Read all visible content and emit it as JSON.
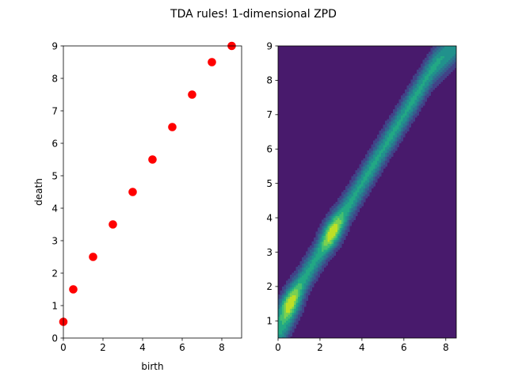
{
  "figure": {
    "title": "TDA rules! 1-dimensional ZPD",
    "background": "#ffffff"
  },
  "chart_data": [
    {
      "type": "scatter",
      "title": "",
      "xlabel": "birth",
      "ylabel": "death",
      "xlim": [
        0,
        9
      ],
      "ylim": [
        0,
        9
      ],
      "xticks": [
        0,
        2,
        4,
        6,
        8
      ],
      "yticks": [
        0,
        1,
        2,
        3,
        4,
        5,
        6,
        7,
        8,
        9
      ],
      "grid": false,
      "legend": "none",
      "series": [
        {
          "color": "#ff0000",
          "points": [
            {
              "x": 0,
              "y": 0.5
            },
            {
              "x": 0.5,
              "y": 1.5
            },
            {
              "x": 1.5,
              "y": 2.5
            },
            {
              "x": 2.5,
              "y": 3.5
            },
            {
              "x": 3.5,
              "y": 4.5
            },
            {
              "x": 4.5,
              "y": 5.5
            },
            {
              "x": 5.5,
              "y": 6.5
            },
            {
              "x": 6.5,
              "y": 7.5
            },
            {
              "x": 7.5,
              "y": 8.5
            },
            {
              "x": 8.5,
              "y": 9
            }
          ]
        }
      ]
    },
    {
      "type": "heatmap",
      "subtype": "filled-contour",
      "title": "",
      "xlabel": "",
      "ylabel": "",
      "xlim": [
        0,
        8.5
      ],
      "ylim": [
        0.5,
        9
      ],
      "xticks": [
        0,
        2,
        4,
        6,
        8
      ],
      "yticks": [
        1,
        2,
        3,
        4,
        5,
        6,
        7,
        8,
        9
      ],
      "grid": false,
      "colormap": "viridis",
      "levels": [
        "#481a6c",
        "#414287",
        "#355f8d",
        "#2a788e",
        "#21918c",
        "#22a884",
        "#44bf70",
        "#7ad151",
        "#bddf26"
      ],
      "kernels": [
        {
          "x": 0,
          "y": 0.5
        },
        {
          "x": 0.5,
          "y": 1.5
        },
        {
          "x": 1.5,
          "y": 2.5
        },
        {
          "x": 2.5,
          "y": 3.5
        },
        {
          "x": 3.5,
          "y": 4.5
        },
        {
          "x": 4.5,
          "y": 5.5
        },
        {
          "x": 5.5,
          "y": 6.5
        },
        {
          "x": 6.5,
          "y": 7.5
        },
        {
          "x": 7.5,
          "y": 8.5
        },
        {
          "x": 8.5,
          "y": 9
        }
      ],
      "kernel_sigma": [
        0.7,
        0.25
      ],
      "band_peaks": [
        {
          "x": 0.6,
          "y": 1.5
        },
        {
          "x": 2.6,
          "y": 3.6
        }
      ]
    }
  ]
}
